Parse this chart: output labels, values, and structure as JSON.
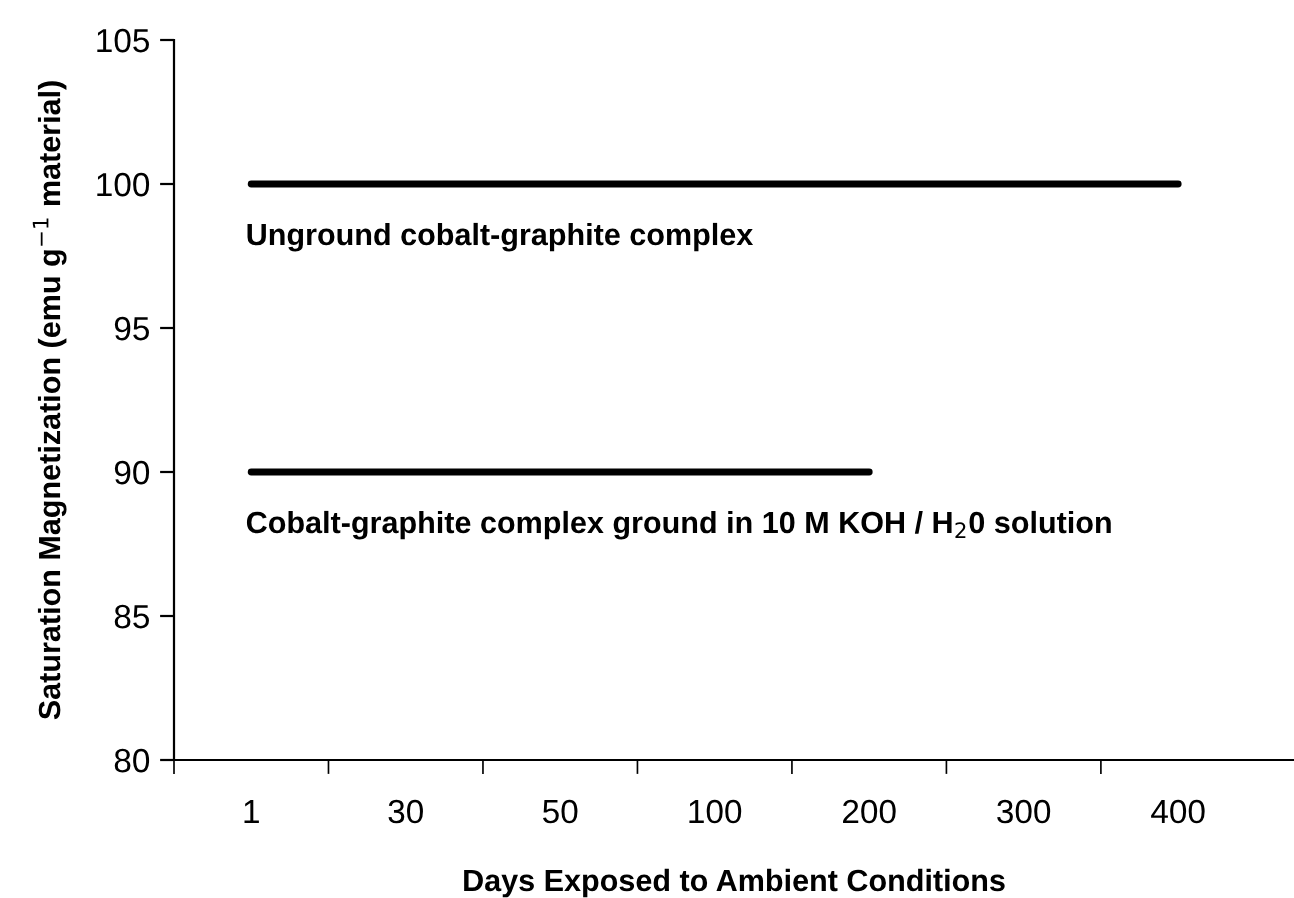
{
  "chart_data": {
    "type": "line",
    "xlabel": "Days Exposed to Ambient Conditions",
    "ylabel": "Saturation Magnetization (emu g$^{−1}$ material)",
    "categories": [
      "1",
      "30",
      "50",
      "100",
      "200",
      "300",
      "400"
    ],
    "series": [
      {
        "name": "Unground cobalt-graphite complex",
        "color": "#000000",
        "values": [
          100,
          100,
          100,
          100,
          100,
          100,
          100
        ]
      },
      {
        "name": "Cobalt-graphite complex ground in 10 M KOH / H$_{2}$0 solution",
        "color": "#000000",
        "values": [
          90,
          90,
          90,
          90,
          90,
          null,
          null
        ]
      }
    ],
    "ylim": [
      80,
      105
    ],
    "yticks": [
      80,
      85,
      90,
      95,
      100,
      105
    ],
    "grid": false,
    "legend": false,
    "marker": "none",
    "line_style": "solid"
  }
}
